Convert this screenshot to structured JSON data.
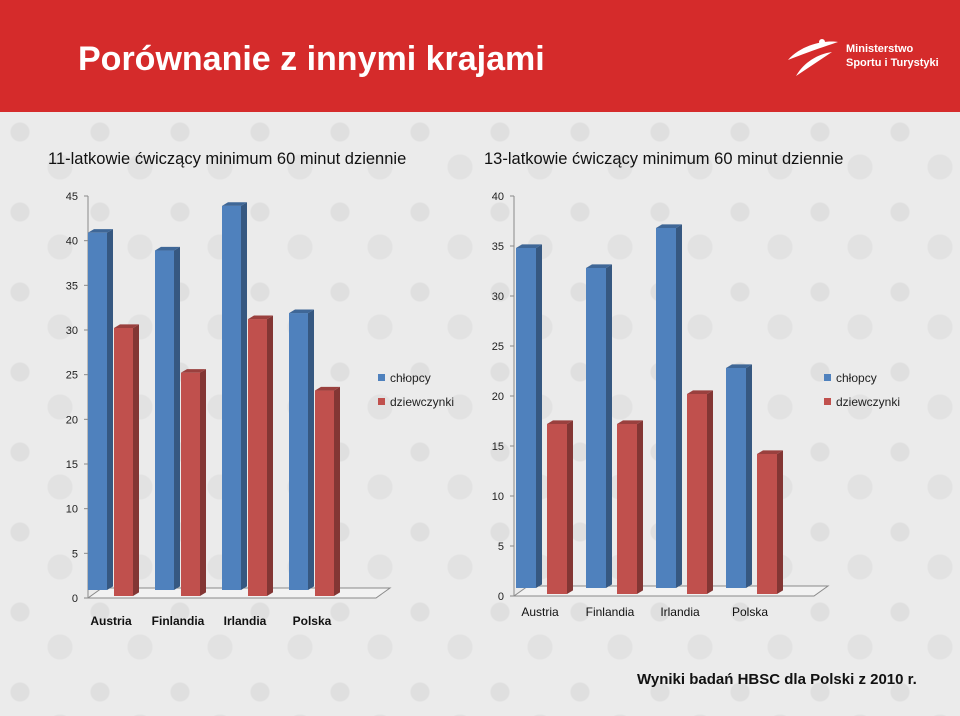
{
  "header": {
    "title": "Porównanie z innymi krajami",
    "logo_line1": "Ministerstwo",
    "logo_line2": "Sportu i Turystyki"
  },
  "footer": {
    "text": "Wyniki badań HBSC dla Polski z 2010 r."
  },
  "colors": {
    "header_bg": "#d52b2b",
    "boys": "#4f81bd",
    "girls": "#c0504d"
  },
  "chart_data": [
    {
      "type": "bar",
      "title": "11-latkowie ćwiczący minimum 60 minut dziennie",
      "categories": [
        "Austria",
        "Finlandia",
        "Irlandia",
        "Polska"
      ],
      "series": [
        {
          "name": "chłopcy",
          "values": [
            40,
            38,
            43,
            31
          ]
        },
        {
          "name": "dziewczynki",
          "values": [
            30,
            25,
            31,
            23
          ]
        }
      ],
      "ylim": [
        0,
        45
      ],
      "yticks": [
        0,
        5,
        10,
        15,
        20,
        25,
        30,
        35,
        40,
        45
      ],
      "legend": "right",
      "three_d": true
    },
    {
      "type": "bar",
      "title": "13-latkowie ćwiczący minimum 60 minut dziennie",
      "categories": [
        "Austria",
        "Finlandia",
        "Irlandia",
        "Polska"
      ],
      "series": [
        {
          "name": "chłopcy",
          "values": [
            34,
            32,
            36,
            22
          ]
        },
        {
          "name": "dziewczynki",
          "values": [
            17,
            17,
            20,
            14
          ]
        }
      ],
      "ylim": [
        0,
        40
      ],
      "yticks": [
        0,
        5,
        10,
        15,
        20,
        25,
        30,
        35,
        40
      ],
      "legend": "right",
      "three_d": true
    }
  ]
}
